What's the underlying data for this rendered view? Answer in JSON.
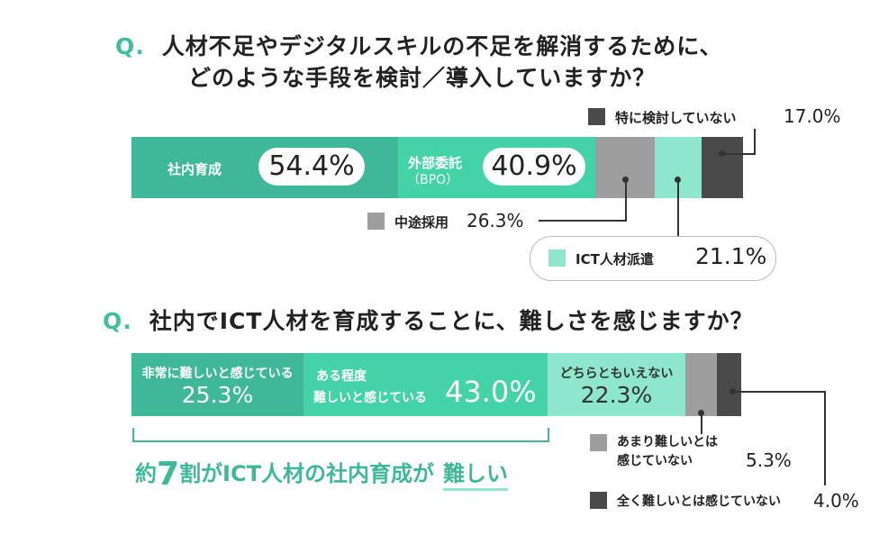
{
  "q1": {
    "q_marker": "Q.",
    "line1": "人材不足やデジタルスキルの不足を解消するために、",
    "line2": "どのような手段を検討／導入していますか？"
  },
  "q2": {
    "q_marker": "Q.",
    "line1": "社内でICT人材を育成することに、難しさを感じますか？"
  },
  "colors": {
    "teal_dark": "#3fb89a",
    "teal_mid": "#43d3a7",
    "teal_light": "#8ee6cd",
    "gray": "#9e9e9e",
    "dark": "#4a4a4a",
    "accent": "#3dbfa0"
  },
  "chart_data": [
    {
      "type": "bar",
      "title": "人材不足やデジタルスキルの不足を解消するために、どのような手段を検討／導入していますか？",
      "series": [
        {
          "name": "社内育成",
          "value": 54.4,
          "label": "54.4%"
        },
        {
          "name": "外部委託（BPO）",
          "value": 40.9,
          "label": "40.9%"
        },
        {
          "name": "中途採用",
          "value": 26.3,
          "label": "26.3%"
        },
        {
          "name": "ICT人材派遣",
          "value": 21.1,
          "label": "21.1%"
        },
        {
          "name": "特に検討していない",
          "value": 17.0,
          "label": "17.0%"
        }
      ]
    },
    {
      "type": "bar",
      "title": "社内でICT人材を育成することに、難しさを感じますか？",
      "series": [
        {
          "name": "非常に難しいと感じている",
          "value": 25.3,
          "label": "25.3%"
        },
        {
          "name": "ある程度難しいと感じている",
          "value": 43.0,
          "label": "43.0%"
        },
        {
          "name": "どちらともいえない",
          "value": 22.3,
          "label": "22.3%"
        },
        {
          "name": "あまり難しいとは感じていない",
          "value": 5.3,
          "label": "5.3%"
        },
        {
          "name": "全く難しいとは感じていない",
          "value": 4.0,
          "label": "4.0%"
        }
      ]
    }
  ],
  "bar1": {
    "seg1_label": "社内育成",
    "seg1_value": "54.4%",
    "seg2_label_line1": "外部委託",
    "seg2_label_line2": "（BPO）",
    "seg2_value": "40.9%"
  },
  "legend1": {
    "none_label": "特に検討していない",
    "none_value": "17.0%",
    "midcareer_label": "中途採用",
    "midcareer_value": "26.3%",
    "ict_label": "ICT人材派遣",
    "ict_value": "21.1%"
  },
  "bar2": {
    "seg1_label": "非常に難しいと感じている",
    "seg1_value": "25.3%",
    "seg2_label_line1": "ある程度",
    "seg2_label_line2": "難しいと感じている",
    "seg2_value": "43.0%",
    "seg3_label": "どちらともいえない",
    "seg3_value": "22.3%"
  },
  "legend2": {
    "notvery_label_line1": "あまり難しいとは",
    "notvery_label_line2": "感じていない",
    "notvery_value": "5.3%",
    "notatall_label": "全く難しいとは感じていない",
    "notatall_value": "4.0%"
  },
  "summary": {
    "pre": "約",
    "num": "7",
    "mid": "割",
    "post": "がICT人材の社内育成が",
    "emph": "難しい"
  }
}
